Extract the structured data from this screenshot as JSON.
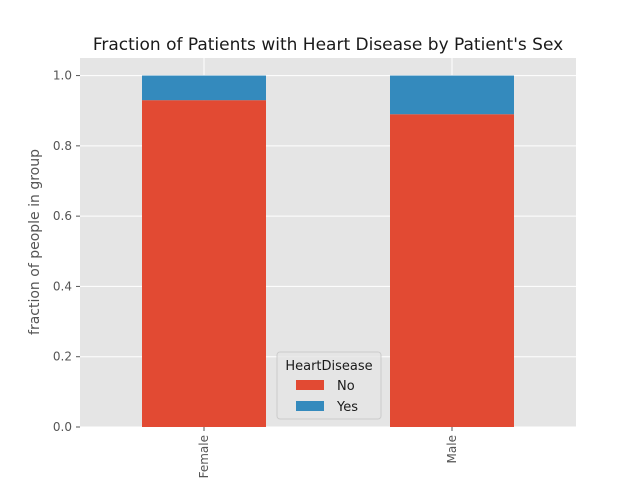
{
  "chart_data": {
    "type": "bar",
    "stacked": true,
    "title": "Fraction of Patients with Heart Disease by Patient's Sex",
    "xlabel": "",
    "ylabel": "fraction of people in group",
    "categories": [
      "Female",
      "Male"
    ],
    "series": [
      {
        "name": "No",
        "color": "#E24A33",
        "values": [
          0.93,
          0.89
        ]
      },
      {
        "name": "Yes",
        "color": "#348ABD",
        "values": [
          0.07,
          0.11
        ]
      }
    ],
    "ylim": [
      0,
      1.05
    ],
    "yticks": [
      "0.0",
      "0.2",
      "0.4",
      "0.6",
      "0.8",
      "1.0"
    ],
    "grid": true,
    "legend": {
      "title": "HeartDisease",
      "placement": "bottom-center"
    }
  }
}
